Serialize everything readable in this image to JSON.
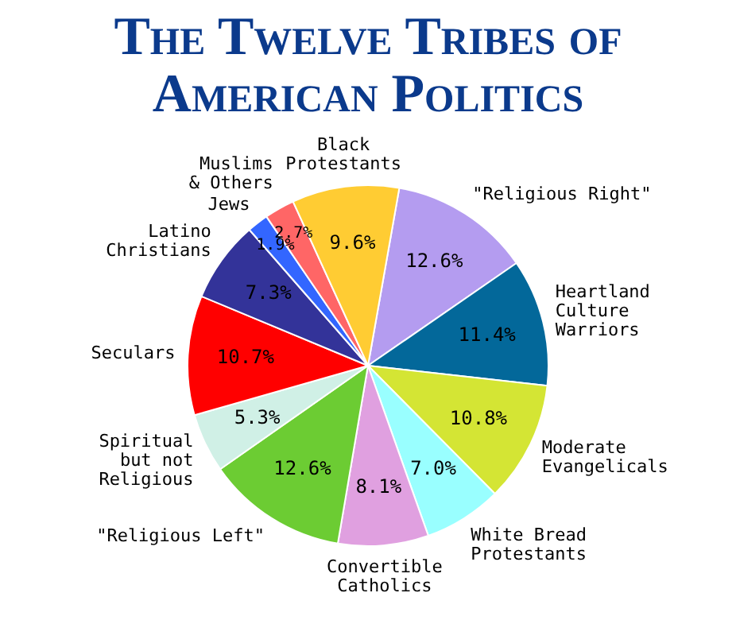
{
  "chart_data": {
    "type": "pie",
    "title": "The Twelve Tribes of American Politics",
    "categories": [
      "\"Religious Right\"",
      "Heartland\nCulture\nWarriors",
      "Moderate\nEvangelicals",
      "White Bread\nProtestants",
      "Convertible\nCatholics",
      "\"Religious Left\"",
      "Spiritual\nbut not\nReligious",
      "Seculars",
      "Latino\nChristians",
      "Jews",
      "Muslims\n& Others",
      "Black\nProtestants"
    ],
    "values": [
      12.6,
      11.4,
      10.8,
      7.0,
      8.1,
      12.6,
      5.3,
      10.7,
      7.3,
      1.9,
      2.7,
      9.6
    ],
    "colors": [
      "#b49cf0",
      "#03689a",
      "#d4e534",
      "#99ffff",
      "#e0a0e0",
      "#6ccc33",
      "#d0f0e6",
      "#ff0000",
      "#333399",
      "#3366ff",
      "#ff6666",
      "#ffcc33"
    ],
    "value_labels": [
      "12.6%",
      "11.4%",
      "10.8%",
      "7.0%",
      "8.1%",
      "12.6%",
      "5.3%",
      "10.7%",
      "7.3%",
      "1.9%",
      "2.7%",
      "9.6%"
    ],
    "legend": false
  }
}
